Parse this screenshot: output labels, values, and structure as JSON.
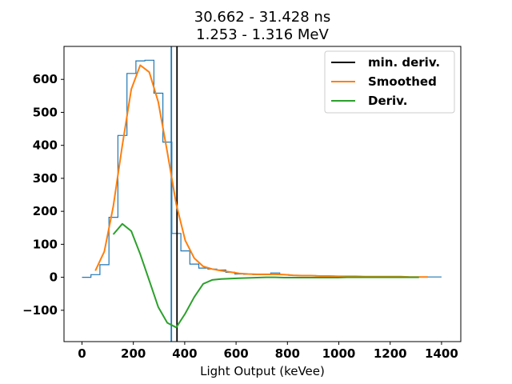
{
  "chart_data": {
    "type": "line",
    "title_line1": "30.662 - 31.428 ns",
    "title_line2": "1.253 - 1.316 MeV",
    "xlabel": "Light Output (keVee)",
    "ylabel": "",
    "xlim": [
      -70,
      1475
    ],
    "ylim": [
      -195,
      700
    ],
    "xticks": [
      0,
      200,
      400,
      600,
      800,
      1000,
      1200,
      1400
    ],
    "yticks": [
      -100,
      0,
      100,
      200,
      300,
      400,
      500,
      600
    ],
    "grid": false,
    "legend_position": "top-right",
    "legend": [
      {
        "label": "min. deriv.",
        "color": "#000000"
      },
      {
        "label": "Smoothed",
        "color": "#ff7f0e"
      },
      {
        "label": "Deriv.",
        "color": "#2ca02c"
      }
    ],
    "histogram": {
      "color": "#1f77b4",
      "edges": [
        0,
        35,
        70,
        105,
        140,
        175,
        210,
        245,
        280,
        315,
        350,
        385,
        420,
        455,
        490,
        525,
        560,
        595,
        630,
        665,
        700,
        735,
        770,
        805,
        840,
        875,
        910,
        945,
        980,
        1015,
        1050,
        1085,
        1120,
        1155,
        1190,
        1225,
        1260,
        1295,
        1330,
        1365,
        1400
      ],
      "counts": [
        0,
        8,
        38,
        182,
        430,
        618,
        656,
        658,
        558,
        410,
        133,
        80,
        40,
        28,
        25,
        22,
        15,
        10,
        9,
        8,
        8,
        13,
        8,
        6,
        5,
        5,
        4,
        4,
        3,
        3,
        3,
        2,
        2,
        2,
        2,
        2,
        1,
        1,
        1,
        1
      ]
    },
    "series": [
      {
        "name": "Smoothed",
        "color": "#ff7f0e",
        "x": [
          52,
          87,
          122,
          157,
          192,
          227,
          262,
          297,
          332,
          367,
          402,
          437,
          472,
          507,
          542,
          577,
          612,
          647,
          682,
          717,
          752,
          787,
          822,
          857,
          892,
          927,
          962,
          997,
          1032,
          1067,
          1102,
          1137,
          1172,
          1207,
          1242,
          1277,
          1312,
          1347
        ],
        "y": [
          20,
          78,
          215,
          400,
          570,
          643,
          622,
          532,
          380,
          222,
          112,
          58,
          33,
          25,
          20,
          16,
          12,
          10,
          9,
          9,
          9,
          8,
          6,
          5,
          5,
          4,
          4,
          3,
          3,
          3,
          2,
          2,
          2,
          2,
          2,
          1,
          1,
          1
        ]
      },
      {
        "name": "Deriv.",
        "color": "#2ca02c",
        "x": [
          122,
          157,
          192,
          227,
          262,
          297,
          332,
          367,
          402,
          437,
          472,
          507,
          542,
          577,
          612,
          647,
          682,
          717,
          752,
          787,
          822,
          857,
          892,
          927,
          962,
          997,
          1032,
          1067,
          1102,
          1137,
          1172,
          1207,
          1242,
          1277,
          1312
        ],
        "y": [
          130,
          162,
          140,
          70,
          -10,
          -90,
          -138,
          -152,
          -110,
          -60,
          -20,
          -8,
          -5,
          -4,
          -3,
          -2,
          -1,
          0,
          0,
          -1,
          -1,
          -1,
          -1,
          -1,
          -1,
          -1,
          0,
          0,
          0,
          0,
          0,
          0,
          0,
          0,
          0
        ]
      }
    ],
    "vlines": [
      {
        "name": "min. deriv.",
        "x": 370,
        "color": "#000000"
      },
      {
        "name": "histogram-edge-marker",
        "x": 348,
        "color": "#1f77b4"
      }
    ]
  }
}
